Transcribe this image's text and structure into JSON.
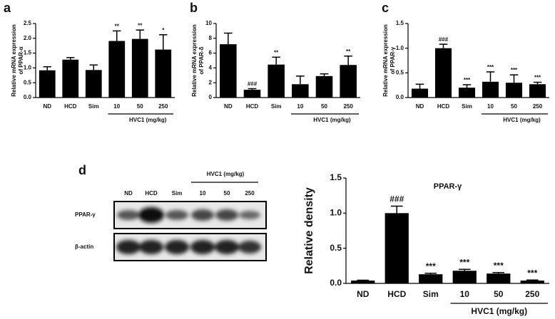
{
  "chart_data": [
    {
      "type": "bar",
      "panel": "a",
      "ylabel": [
        "Relative mRNA expression",
        "of  PPAR-α"
      ],
      "categories": [
        "ND",
        "HCD",
        "Sim",
        "10",
        "50",
        "250"
      ],
      "group_label": "HVC1  (mg/kg)",
      "values": [
        0.92,
        1.28,
        0.93,
        1.91,
        1.98,
        1.62
      ],
      "errors": [
        0.12,
        0.07,
        0.17,
        0.34,
        0.3,
        0.5
      ],
      "annotations": [
        null,
        null,
        null,
        "**",
        "**",
        "*"
      ],
      "color": "#000000",
      "ylim": [
        0,
        2.5
      ],
      "yticks": [
        {
          "value": 0,
          "label": "0.0"
        },
        0.5,
        {
          "value": 1,
          "label": "1.0"
        },
        1.5,
        {
          "value": 2,
          "label": "2.0"
        },
        2.5
      ]
    },
    {
      "type": "bar",
      "panel": "b",
      "ylabel": [
        "Relative mRNA expression",
        "of  PPAR-δ"
      ],
      "categories": [
        "ND",
        "HCD",
        "Sim",
        "10",
        "50",
        "250"
      ],
      "group_label": "HVC1  (mg/kg)",
      "values": [
        7.2,
        1.05,
        4.45,
        1.8,
        2.9,
        4.4
      ],
      "errors": [
        1.5,
        0.15,
        1.0,
        1.1,
        0.3,
        1.2
      ],
      "annotations": [
        null,
        "###",
        "**",
        null,
        null,
        "**"
      ],
      "color": "#000000",
      "ylim": [
        0,
        10
      ],
      "yticks": [
        0,
        2,
        4,
        6,
        8,
        10
      ]
    },
    {
      "type": "bar",
      "panel": "c",
      "ylabel": [
        "Relative mRNA expression",
        "of  PPAR-γ"
      ],
      "categories": [
        "ND",
        "HCD",
        "Sim",
        "10",
        "50",
        "250"
      ],
      "group_label": "HVC1  (mg/kg)",
      "values": [
        0.18,
        1.0,
        0.2,
        0.32,
        0.3,
        0.27
      ],
      "errors": [
        0.09,
        0.08,
        0.06,
        0.2,
        0.16,
        0.04
      ],
      "annotations": [
        null,
        "###",
        "***",
        "***",
        "***",
        "***"
      ],
      "color": "#000000",
      "ylim": [
        0,
        1.5
      ],
      "yticks": [
        {
          "value": 0,
          "label": "0.0"
        },
        0.5,
        {
          "value": 1,
          "label": "1.0"
        },
        1.5
      ]
    },
    {
      "type": "bar",
      "panel": "d",
      "title": "PPAR-γ",
      "ylabel": [
        "Relative density"
      ],
      "categories": [
        "ND",
        "HCD",
        "Sim",
        "10",
        "50",
        "250"
      ],
      "group_label": "HVC1 (mg/kg)",
      "values": [
        0.04,
        1.0,
        0.13,
        0.18,
        0.14,
        0.04
      ],
      "errors": [
        0.005,
        0.1,
        0.015,
        0.02,
        0.015,
        0.008
      ],
      "annotations": [
        null,
        "###",
        "***",
        "***",
        "***",
        "***"
      ],
      "color": "#000000",
      "ylim": [
        0,
        1.5
      ],
      "yticks": [
        {
          "value": 0,
          "label": "0.0"
        },
        0.5,
        {
          "value": 1,
          "label": "1.0"
        },
        1.5
      ]
    }
  ],
  "blot": {
    "lanes": [
      "ND",
      "HCD",
      "Sim",
      "10",
      "50",
      "250"
    ],
    "group_label": "HVC1 (mg/kg)",
    "rows": [
      "PPAR-γ",
      "β-actin"
    ]
  }
}
